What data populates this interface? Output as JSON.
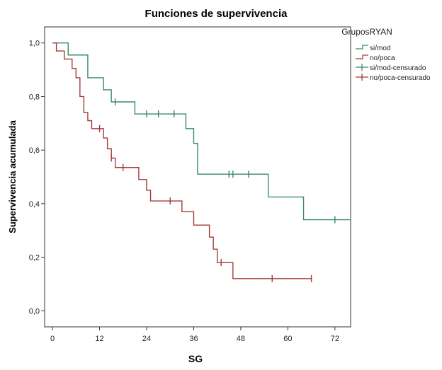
{
  "chart_data": {
    "type": "line",
    "title": "Funciones de supervivencia",
    "xlabel": "SG",
    "ylabel": "Supervivencia acumulada",
    "xlim": [
      -2,
      76
    ],
    "ylim": [
      -0.06,
      1.06
    ],
    "x_ticks": [
      0,
      12,
      24,
      36,
      48,
      60,
      72
    ],
    "y_ticks": [
      0.0,
      0.2,
      0.4,
      0.6,
      0.8,
      1.0
    ],
    "y_tick_labels": [
      "0,0",
      "0,2",
      "0,4",
      "0,6",
      "0,8",
      "1,0"
    ],
    "step": true,
    "legend": {
      "title": "GruposRYAN",
      "position": "right",
      "entries": [
        {
          "label": "si/mod",
          "color": "#3a8a6a",
          "kind": "line"
        },
        {
          "label": "no/poca",
          "color": "#a33a3a",
          "kind": "line"
        },
        {
          "label": "si/mod-censurado",
          "color": "#3a8a6a",
          "kind": "censor"
        },
        {
          "label": "no/poca-censurado",
          "color": "#a33a3a",
          "kind": "censor"
        }
      ]
    },
    "series": [
      {
        "name": "si/mod",
        "color": "#3a8a6a",
        "points": [
          [
            0,
            1.0
          ],
          [
            4,
            0.955
          ],
          [
            9,
            0.87
          ],
          [
            13,
            0.825
          ],
          [
            15,
            0.78
          ],
          [
            21,
            0.735
          ],
          [
            34,
            0.68
          ],
          [
            36,
            0.625
          ],
          [
            37,
            0.51
          ],
          [
            55,
            0.425
          ],
          [
            64,
            0.34
          ],
          [
            76,
            0.34
          ]
        ],
        "censored": [
          [
            16,
            0.78
          ],
          [
            24,
            0.735
          ],
          [
            27,
            0.735
          ],
          [
            31,
            0.735
          ],
          [
            45,
            0.51
          ],
          [
            46,
            0.51
          ],
          [
            50,
            0.51
          ],
          [
            72,
            0.34
          ]
        ]
      },
      {
        "name": "no/poca",
        "color": "#a33a3a",
        "points": [
          [
            0,
            1.0
          ],
          [
            1,
            0.97
          ],
          [
            3,
            0.94
          ],
          [
            5,
            0.905
          ],
          [
            6,
            0.87
          ],
          [
            7,
            0.8
          ],
          [
            8,
            0.74
          ],
          [
            9,
            0.71
          ],
          [
            10,
            0.68
          ],
          [
            13,
            0.645
          ],
          [
            14,
            0.605
          ],
          [
            15,
            0.57
          ],
          [
            16,
            0.535
          ],
          [
            22,
            0.49
          ],
          [
            24,
            0.45
          ],
          [
            25,
            0.41
          ],
          [
            33,
            0.37
          ],
          [
            36,
            0.32
          ],
          [
            40,
            0.275
          ],
          [
            41,
            0.23
          ],
          [
            42,
            0.18
          ],
          [
            46,
            0.12
          ],
          [
            66,
            0.12
          ]
        ],
        "censored": [
          [
            12,
            0.68
          ],
          [
            15,
            0.57
          ],
          [
            18,
            0.535
          ],
          [
            30,
            0.41
          ],
          [
            43,
            0.18
          ],
          [
            56,
            0.12
          ],
          [
            66,
            0.12
          ]
        ]
      }
    ]
  }
}
